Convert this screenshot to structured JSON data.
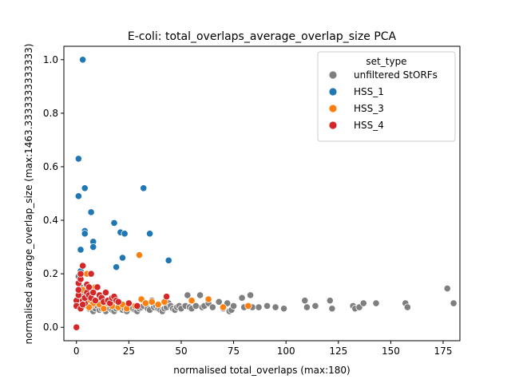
{
  "chart_data": {
    "type": "scatter",
    "title": "E-coli: total_overlaps_average_overlap_size PCA",
    "xlabel": "normalised total_overlaps (max:180)",
    "ylabel": "normalised average_overlap_size (max:1463.3333333333333)",
    "xlim": [
      -6,
      183
    ],
    "ylim": [
      -0.05,
      1.05
    ],
    "x_ticks": [
      0,
      25,
      50,
      75,
      100,
      125,
      150,
      175
    ],
    "x_tick_labels": [
      "0",
      "25",
      "50",
      "75",
      "100",
      "125",
      "150",
      "175"
    ],
    "y_ticks": [
      0.0,
      0.2,
      0.4,
      0.6,
      0.8,
      1.0
    ],
    "y_tick_labels": [
      "0.0",
      "0.2",
      "0.4",
      "0.6",
      "0.8",
      "1.0"
    ],
    "grid": false,
    "legend": {
      "title": "set_type",
      "placement": "top-right"
    },
    "series": [
      {
        "name": "unfiltered StORFs",
        "color": "#7f7f7f",
        "points": [
          [
            1,
            0.19
          ],
          [
            2,
            0.15
          ],
          [
            3,
            0.12
          ],
          [
            4,
            0.1
          ],
          [
            5,
            0.08
          ],
          [
            6,
            0.07
          ],
          [
            7,
            0.09
          ],
          [
            8,
            0.06
          ],
          [
            9,
            0.07
          ],
          [
            10,
            0.08
          ],
          [
            11,
            0.065
          ],
          [
            12,
            0.07
          ],
          [
            13,
            0.075
          ],
          [
            14,
            0.06
          ],
          [
            15,
            0.08
          ],
          [
            16,
            0.07
          ],
          [
            17,
            0.065
          ],
          [
            18,
            0.06
          ],
          [
            19,
            0.07
          ],
          [
            20,
            0.075
          ],
          [
            21,
            0.08
          ],
          [
            22,
            0.065
          ],
          [
            23,
            0.07
          ],
          [
            24,
            0.06
          ],
          [
            25,
            0.075
          ],
          [
            26,
            0.08
          ],
          [
            27,
            0.07
          ],
          [
            28,
            0.065
          ],
          [
            29,
            0.06
          ],
          [
            30,
            0.07
          ],
          [
            31,
            0.075
          ],
          [
            32,
            0.08
          ],
          [
            33,
            0.09
          ],
          [
            34,
            0.07
          ],
          [
            35,
            0.065
          ],
          [
            36,
            0.1
          ],
          [
            37,
            0.075
          ],
          [
            38,
            0.08
          ],
          [
            39,
            0.07
          ],
          [
            40,
            0.065
          ],
          [
            41,
            0.06
          ],
          [
            42,
            0.07
          ],
          [
            43,
            0.075
          ],
          [
            44,
            0.09
          ],
          [
            45,
            0.08
          ],
          [
            46,
            0.07
          ],
          [
            47,
            0.065
          ],
          [
            48,
            0.075
          ],
          [
            49,
            0.08
          ],
          [
            50,
            0.07
          ],
          [
            52,
            0.08
          ],
          [
            53,
            0.12
          ],
          [
            54,
            0.075
          ],
          [
            55,
            0.07
          ],
          [
            57,
            0.08
          ],
          [
            59,
            0.12
          ],
          [
            60,
            0.075
          ],
          [
            61,
            0.08
          ],
          [
            63,
            0.09
          ],
          [
            65,
            0.075
          ],
          [
            68,
            0.095
          ],
          [
            70,
            0.07
          ],
          [
            72,
            0.09
          ],
          [
            73,
            0.06
          ],
          [
            74,
            0.065
          ],
          [
            75,
            0.08
          ],
          [
            79,
            0.11
          ],
          [
            80,
            0.075
          ],
          [
            83,
            0.12
          ],
          [
            84,
            0.075
          ],
          [
            87,
            0.075
          ],
          [
            91,
            0.08
          ],
          [
            95,
            0.075
          ],
          [
            99,
            0.07
          ],
          [
            109,
            0.1
          ],
          [
            110,
            0.075
          ],
          [
            114,
            0.08
          ],
          [
            121,
            0.1
          ],
          [
            122,
            0.07
          ],
          [
            132,
            0.08
          ],
          [
            133,
            0.07
          ],
          [
            135,
            0.075
          ],
          [
            137,
            0.09
          ],
          [
            143,
            0.09
          ],
          [
            157,
            0.09
          ],
          [
            158,
            0.075
          ],
          [
            177,
            0.145
          ],
          [
            180,
            0.09
          ]
        ]
      },
      {
        "name": "HSS_1",
        "color": "#1f77b4",
        "points": [
          [
            3,
            1.0
          ],
          [
            1,
            0.63
          ],
          [
            1,
            0.49
          ],
          [
            4,
            0.52
          ],
          [
            32,
            0.52
          ],
          [
            7,
            0.43
          ],
          [
            4,
            0.36
          ],
          [
            4,
            0.35
          ],
          [
            18,
            0.39
          ],
          [
            21,
            0.355
          ],
          [
            23,
            0.35
          ],
          [
            35,
            0.35
          ],
          [
            8,
            0.32
          ],
          [
            8,
            0.3
          ],
          [
            2,
            0.29
          ],
          [
            22,
            0.26
          ],
          [
            44,
            0.25
          ],
          [
            19,
            0.225
          ],
          [
            30,
            0.27
          ],
          [
            2,
            0.21
          ]
        ]
      },
      {
        "name": "HSS_3",
        "color": "#ff7f0e",
        "points": [
          [
            3,
            0.14
          ],
          [
            5,
            0.2
          ],
          [
            5,
            0.12
          ],
          [
            6,
            0.1
          ],
          [
            7,
            0.08
          ],
          [
            8,
            0.09
          ],
          [
            10,
            0.1
          ],
          [
            11,
            0.085
          ],
          [
            12,
            0.12
          ],
          [
            13,
            0.07
          ],
          [
            15,
            0.09
          ],
          [
            17,
            0.08
          ],
          [
            20,
            0.075
          ],
          [
            22,
            0.085
          ],
          [
            24,
            0.07
          ],
          [
            28,
            0.08
          ],
          [
            31,
            0.105
          ],
          [
            33,
            0.09
          ],
          [
            36,
            0.095
          ],
          [
            39,
            0.085
          ],
          [
            42,
            0.095
          ],
          [
            55,
            0.1
          ],
          [
            63,
            0.105
          ],
          [
            70,
            0.075
          ],
          [
            82,
            0.08
          ],
          [
            30,
            0.27
          ],
          [
            9,
            0.15
          ],
          [
            6,
            0.075
          ]
        ]
      },
      {
        "name": "HSS_4",
        "color": "#d62728",
        "points": [
          [
            0,
            0.0
          ],
          [
            0,
            0.1
          ],
          [
            0,
            0.08
          ],
          [
            1,
            0.12
          ],
          [
            1,
            0.14
          ],
          [
            1,
            0.165
          ],
          [
            2,
            0.18
          ],
          [
            2,
            0.2
          ],
          [
            3,
            0.23
          ],
          [
            3,
            0.1
          ],
          [
            4,
            0.09
          ],
          [
            4,
            0.11
          ],
          [
            5,
            0.13
          ],
          [
            5,
            0.16
          ],
          [
            6,
            0.15
          ],
          [
            6,
            0.12
          ],
          [
            7,
            0.2
          ],
          [
            7,
            0.11
          ],
          [
            8,
            0.13
          ],
          [
            9,
            0.1
          ],
          [
            10,
            0.15
          ],
          [
            11,
            0.12
          ],
          [
            12,
            0.11
          ],
          [
            13,
            0.095
          ],
          [
            14,
            0.13
          ],
          [
            15,
            0.1
          ],
          [
            16,
            0.09
          ],
          [
            17,
            0.11
          ],
          [
            18,
            0.115
          ],
          [
            19,
            0.1
          ],
          [
            20,
            0.095
          ],
          [
            25,
            0.09
          ],
          [
            29,
            0.08
          ],
          [
            43,
            0.115
          ],
          [
            2,
            0.07
          ],
          [
            3,
            0.085
          ]
        ]
      }
    ]
  }
}
